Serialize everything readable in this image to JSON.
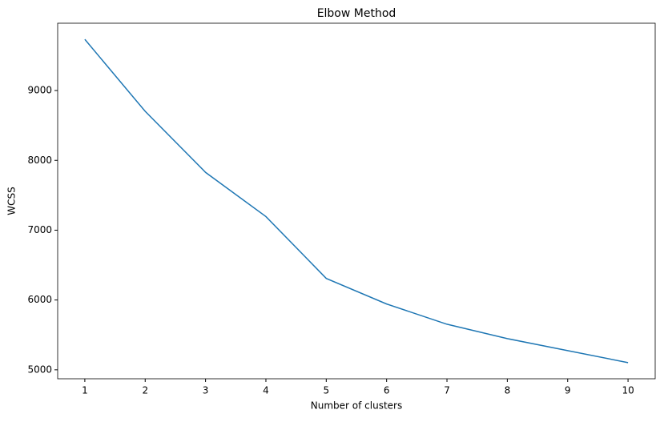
{
  "chart_data": {
    "type": "line",
    "title": "Elbow Method",
    "x_label": "Number of clusters",
    "y_label": "WCSS",
    "x": [
      1,
      2,
      3,
      4,
      5,
      6,
      7,
      8,
      9,
      10
    ],
    "series": [
      {
        "color": "#1f77b4",
        "values": [
          9733,
          8702,
          7828,
          7195,
          6309,
          5943,
          5653,
          5447,
          5275,
          5103
        ]
      }
    ],
    "xlim": [
      0.55,
      10.45
    ],
    "xticks": [
      1,
      2,
      3,
      4,
      5,
      6,
      7,
      8,
      9,
      10
    ],
    "ylim": [
      4872,
      9964
    ],
    "yticks": [
      5000,
      6000,
      7000,
      8000,
      9000
    ],
    "grid": false
  }
}
